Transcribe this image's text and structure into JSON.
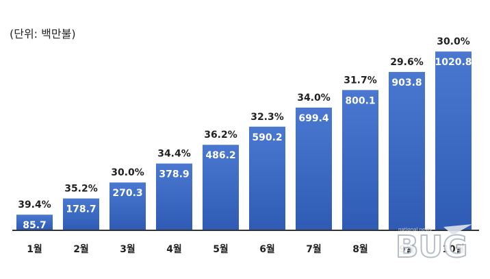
{
  "unit_label": "(단위: 백만불)",
  "watermark": {
    "text": "BUG",
    "small_text": "national news"
  },
  "chart_data": {
    "type": "bar",
    "title": "",
    "xlabel": "",
    "ylabel": "",
    "ylim": [
      0,
      1100
    ],
    "grid": false,
    "legend": "none",
    "bar_color_top": "#4a78d0",
    "bar_color_bottom": "#2f5bb5",
    "categories": [
      "1월",
      "2월",
      "3월",
      "4월",
      "5월",
      "6월",
      "7월",
      "8월",
      "9월",
      "10월"
    ],
    "series": [
      {
        "values": [
          85.7,
          178.7,
          270.3,
          378.9,
          486.2,
          590.2,
          699.4,
          800.1,
          903.8,
          1020.8
        ],
        "value_labels": [
          "85.7",
          "178.7",
          "270.3",
          "378.9",
          "486.2",
          "590.2",
          "699.4",
          "800.1",
          "903.8",
          "1020.8"
        ],
        "percent_labels": [
          "39.4%",
          "35.2%",
          "30.0%",
          "34.4%",
          "36.2%",
          "32.3%",
          "34.0%",
          "31.7%",
          "29.6%",
          "30.0%"
        ]
      }
    ]
  }
}
